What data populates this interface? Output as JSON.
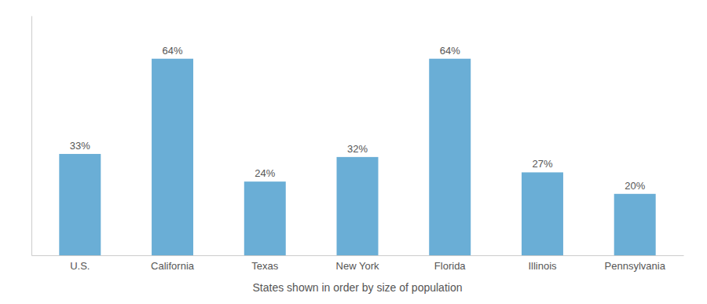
{
  "chart_data": {
    "type": "bar",
    "categories": [
      "U.S.",
      "California",
      "Texas",
      "New York",
      "Florida",
      "Illinois",
      "Pennsylvania"
    ],
    "values": [
      33,
      64,
      24,
      32,
      64,
      27,
      20
    ],
    "value_labels": [
      "33%",
      "64%",
      "24%",
      "32%",
      "64%",
      "27%",
      "20%"
    ],
    "data_labels": true,
    "color": "#6aaed6",
    "xlabel": "States shown in order by size of population",
    "ylim": [
      0,
      78
    ],
    "tick_labels": "x"
  }
}
